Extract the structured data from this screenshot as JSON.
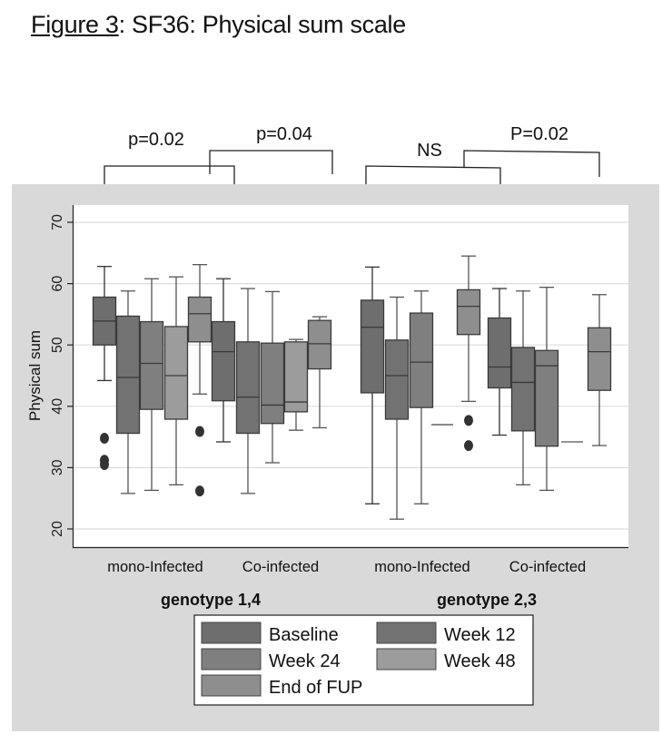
{
  "figure": {
    "title_prefix": "Figure 3",
    "title_rest": ": SF36: Physical sum scale"
  },
  "colors": {
    "panel_bg": "#d9d9d9",
    "plot_bg": "#ffffff",
    "grid": "#dcdcdc",
    "Baseline": "#6e6e6e",
    "Week 12": "#727272",
    "Week 24": "#7f7f7f",
    "Week 48": "#9c9c9c",
    "End of FUP": "#8e8e8e",
    "outlier": "#333333"
  },
  "chart_data": {
    "type": "box",
    "title": "Figure 3: SF36: Physical sum scale",
    "ylabel": "Physical sum",
    "ylim": [
      17,
      73
    ],
    "yticks": [
      20,
      30,
      40,
      50,
      60,
      70
    ],
    "grid": true,
    "legend_position": "bottom",
    "legend": [
      "Baseline",
      "Week 12",
      "Week 24",
      "Week 48",
      "End of FUP"
    ],
    "genotypes": [
      {
        "label": "genotype 1,4",
        "groups": [
          {
            "label": "mono-Infected",
            "boxes": [
              {
                "series": "Baseline",
                "min": 44.2,
                "q1": 50.0,
                "median": 53.9,
                "q3": 57.8,
                "max": 62.8,
                "outliers": [
                  34.8,
                  31.2,
                  30.5
                ]
              },
              {
                "series": "Week 12",
                "min": 25.8,
                "q1": 35.6,
                "median": 44.7,
                "q3": 54.7,
                "max": 58.8,
                "outliers": []
              },
              {
                "series": "Week 24",
                "min": 26.3,
                "q1": 39.5,
                "median": 47.0,
                "q3": 53.8,
                "max": 60.8,
                "outliers": []
              },
              {
                "series": "Week 48",
                "min": 27.2,
                "q1": 37.9,
                "median": 45.0,
                "q3": 53.0,
                "max": 61.1,
                "outliers": []
              },
              {
                "series": "End of FUP",
                "min": 42.0,
                "q1": 50.5,
                "median": 55.1,
                "q3": 57.8,
                "max": 63.1,
                "outliers": [
                  35.9,
                  26.2
                ]
              }
            ]
          },
          {
            "label": "Co-infected",
            "boxes": [
              {
                "series": "Baseline",
                "min": 34.2,
                "q1": 40.9,
                "median": 48.9,
                "q3": 53.8,
                "max": 60.8,
                "outliers": []
              },
              {
                "series": "Week 12",
                "min": 25.8,
                "q1": 35.6,
                "median": 41.5,
                "q3": 50.5,
                "max": 59.2,
                "outliers": []
              },
              {
                "series": "Week 24",
                "min": 30.8,
                "q1": 37.2,
                "median": 40.2,
                "q3": 50.3,
                "max": 58.7,
                "outliers": []
              },
              {
                "series": "Week 48",
                "min": 36.1,
                "q1": 39.1,
                "median": 40.7,
                "q3": 50.5,
                "max": 50.9,
                "outliers": []
              },
              {
                "series": "End of FUP",
                "min": 36.5,
                "q1": 46.1,
                "median": 50.2,
                "q3": 54.0,
                "max": 54.6,
                "outliers": []
              }
            ]
          }
        ]
      },
      {
        "label": "genotype 2,3",
        "groups": [
          {
            "label": "mono-Infected",
            "boxes": [
              {
                "series": "Baseline",
                "min": 24.1,
                "q1": 42.2,
                "median": 52.9,
                "q3": 57.3,
                "max": 62.7,
                "outliers": []
              },
              {
                "series": "Week 12",
                "min": 21.6,
                "q1": 37.9,
                "median": 45.0,
                "q3": 50.8,
                "max": 57.8,
                "outliers": []
              },
              {
                "series": "Week 24",
                "min": 24.1,
                "q1": 39.8,
                "median": 47.2,
                "q3": 55.2,
                "max": 58.8,
                "outliers": []
              },
              {
                "series": "Week 48",
                "min": 37.0,
                "q1": 37.0,
                "median": 37.0,
                "q3": 37.0,
                "max": 37.0,
                "outliers": []
              },
              {
                "series": "End of FUP",
                "min": 40.8,
                "q1": 51.7,
                "median": 56.3,
                "q3": 59.0,
                "max": 64.5,
                "outliers": [
                  37.7,
                  33.6
                ]
              }
            ]
          },
          {
            "label": "Co-infected",
            "boxes": [
              {
                "series": "Baseline",
                "min": 35.3,
                "q1": 43.0,
                "median": 46.4,
                "q3": 54.4,
                "max": 59.2,
                "outliers": []
              },
              {
                "series": "Week 12",
                "min": 27.2,
                "q1": 36.0,
                "median": 43.9,
                "q3": 49.6,
                "max": 58.8,
                "outliers": []
              },
              {
                "series": "Week 24",
                "min": 26.3,
                "q1": 33.5,
                "median": 46.6,
                "q3": 49.1,
                "max": 59.4,
                "outliers": []
              },
              {
                "series": "Week 48",
                "min": 34.2,
                "q1": 34.2,
                "median": 34.2,
                "q3": 34.2,
                "max": 34.2,
                "outliers": []
              },
              {
                "series": "End of FUP",
                "min": 33.6,
                "q1": 42.6,
                "median": 48.9,
                "q3": 52.8,
                "max": 58.2,
                "outliers": []
              }
            ]
          }
        ]
      }
    ],
    "annotations": [
      {
        "text": "p=0.02",
        "compares": "genotype 1,4 mono-Infected vs Co-infected"
      },
      {
        "text": "p=0.04",
        "compares": "genotype 1,4 Co-infected bracket"
      },
      {
        "text": "NS",
        "compares": "genotype 2,3 mono-Infected vs Co-infected"
      },
      {
        "text": "P=0.02",
        "compares": "genotype 2,3 Co-infected bracket"
      }
    ]
  }
}
